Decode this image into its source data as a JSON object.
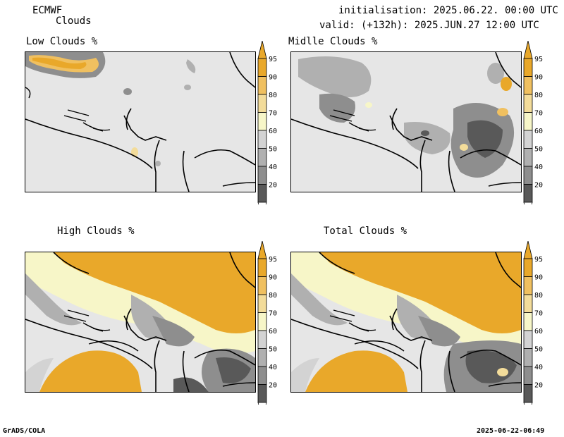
{
  "header": {
    "model": "ECMWF",
    "product": "Clouds",
    "init": "initialisation: 2025.06.22. 00:00 UTC",
    "valid": "valid: (+132h): 2025.JUN.27 12:00 UTC"
  },
  "panels": [
    {
      "title": "Low Clouds %"
    },
    {
      "title": "Midlle Clouds %"
    },
    {
      "title": "High Clouds %"
    },
    {
      "title": "Total Clouds %"
    }
  ],
  "colorbar": {
    "labels": [
      "95",
      "90",
      "80",
      "70",
      "60",
      "50",
      "40",
      "20"
    ],
    "colors": [
      "#e9a82a",
      "#f0c060",
      "#f3dc9a",
      "#f7f6c8",
      "#d3d3d3",
      "#b0b0b0",
      "#8e8e8e",
      "#595959"
    ]
  },
  "footer": {
    "left": "GrADS/COLA",
    "right": "2025-06-22-06:49"
  }
}
